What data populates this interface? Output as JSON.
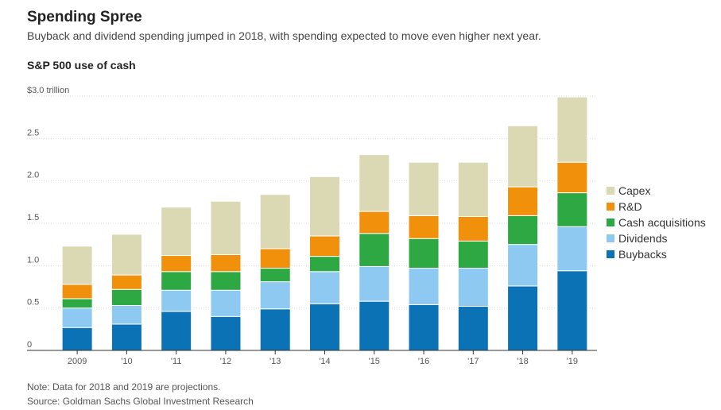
{
  "header": {
    "title": "Spending Spree",
    "subtitle": "Buyback and dividend spending jumped in 2018, with spending expected to move even higher next year."
  },
  "footer": {
    "note": "Note: Data for 2018 and 2019 are projections.",
    "source": "Source: Goldman Sachs Global Investment Research"
  },
  "chart_data": {
    "type": "bar",
    "stacked": true,
    "title": "S&P 500 use of cash",
    "xlabel": "",
    "ylabel": "",
    "ylim": [
      0,
      3.0
    ],
    "yticks": [
      {
        "value": 0,
        "label": "0"
      },
      {
        "value": 0.5,
        "label": "0.5"
      },
      {
        "value": 1.0,
        "label": "1.0"
      },
      {
        "value": 1.5,
        "label": "1.5"
      },
      {
        "value": 2.0,
        "label": "2.0"
      },
      {
        "value": 2.5,
        "label": "2.5"
      },
      {
        "value": 3.0,
        "label": "$3.0 trillion"
      }
    ],
    "categories": [
      "2009",
      "'10",
      "'11",
      "'12",
      "'13",
      "'14",
      "'15",
      "'16",
      "'17",
      "'18",
      "'19"
    ],
    "grid": true,
    "legend_position": "right",
    "series": [
      {
        "name": "Buybacks",
        "color": "#0b72b5",
        "values": [
          0.27,
          0.31,
          0.46,
          0.4,
          0.49,
          0.55,
          0.58,
          0.54,
          0.52,
          0.76,
          0.94
        ]
      },
      {
        "name": "Dividends",
        "color": "#8ec9f1",
        "values": [
          0.23,
          0.22,
          0.25,
          0.31,
          0.32,
          0.38,
          0.41,
          0.43,
          0.45,
          0.49,
          0.52
        ]
      },
      {
        "name": "Cash acquisitions",
        "color": "#2ea843",
        "values": [
          0.11,
          0.19,
          0.22,
          0.22,
          0.16,
          0.18,
          0.39,
          0.35,
          0.32,
          0.34,
          0.4
        ]
      },
      {
        "name": "R&D",
        "color": "#f0900b",
        "values": [
          0.17,
          0.17,
          0.19,
          0.2,
          0.23,
          0.24,
          0.26,
          0.27,
          0.29,
          0.34,
          0.36
        ]
      },
      {
        "name": "Capex",
        "color": "#dbd9b4",
        "values": [
          0.45,
          0.48,
          0.57,
          0.63,
          0.64,
          0.7,
          0.67,
          0.63,
          0.64,
          0.72,
          0.77
        ]
      }
    ],
    "legend_order": [
      "Capex",
      "R&D",
      "Cash acquisitions",
      "Dividends",
      "Buybacks"
    ]
  }
}
